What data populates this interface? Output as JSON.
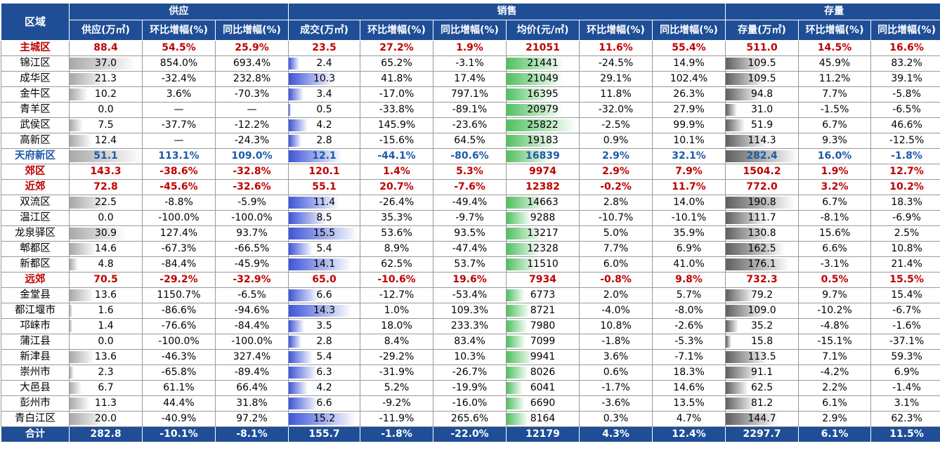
{
  "header": {
    "region": "区域",
    "groups": {
      "supply": "供应",
      "sales": "销售",
      "stock": "存量"
    },
    "columns": [
      "供应(万㎡)",
      "环比增幅(%)",
      "同比增幅(%)",
      "成交(万㎡)",
      "环比增幅(%)",
      "同比增幅(%)",
      "均价(元/㎡)",
      "环比增幅(%)",
      "同比增幅(%)",
      "存量(万㎡)",
      "环比增幅(%)",
      "同比增幅(%)"
    ]
  },
  "colors": {
    "header_bg": "#1f4e96",
    "red_text": "#c00000",
    "blue_text": "#1c5aa8"
  },
  "rows": [
    {
      "style": "red",
      "cells": [
        "主城区",
        "88.4",
        "54.5%",
        "25.9%",
        "23.5",
        "27.2%",
        "1.9%",
        "21051",
        "11.6%",
        "55.4%",
        "511.0",
        "14.5%",
        "16.6%"
      ]
    },
    {
      "style": "normal",
      "cells": [
        "锦江区",
        "37.0",
        "854.0%",
        "693.4%",
        "2.4",
        "65.2%",
        "-3.1%",
        "21441",
        "-24.5%",
        "14.9%",
        "109.5",
        "45.9%",
        "83.2%"
      ]
    },
    {
      "style": "normal",
      "cells": [
        "成华区",
        "21.3",
        "-32.4%",
        "232.8%",
        "10.3",
        "41.8%",
        "17.4%",
        "21049",
        "29.1%",
        "102.4%",
        "109.5",
        "11.2%",
        "39.1%"
      ]
    },
    {
      "style": "normal",
      "cells": [
        "金牛区",
        "10.2",
        "3.6%",
        "-70.3%",
        "3.4",
        "-17.0%",
        "797.1%",
        "16395",
        "11.8%",
        "26.3%",
        "94.8",
        "7.7%",
        "-5.8%"
      ]
    },
    {
      "style": "normal",
      "cells": [
        "青羊区",
        "0.0",
        "—",
        "—",
        "0.5",
        "-33.8%",
        "-89.1%",
        "20979",
        "-32.0%",
        "27.9%",
        "31.0",
        "-1.5%",
        "-6.5%"
      ]
    },
    {
      "style": "normal",
      "cells": [
        "武侯区",
        "7.5",
        "-37.7%",
        "-12.2%",
        "4.2",
        "145.9%",
        "-23.6%",
        "25822",
        "-2.5%",
        "99.9%",
        "51.9",
        "6.7%",
        "46.6%"
      ]
    },
    {
      "style": "normal",
      "cells": [
        "高新区",
        "12.4",
        "—",
        "-24.3%",
        "2.8",
        "-15.6%",
        "64.5%",
        "19183",
        "0.9%",
        "10.1%",
        "114.3",
        "9.3%",
        "-12.5%"
      ]
    },
    {
      "style": "blue",
      "cells": [
        "天府新区",
        "51.1",
        "113.1%",
        "109.0%",
        "12.1",
        "-44.1%",
        "-80.6%",
        "16839",
        "2.9%",
        "32.1%",
        "282.4",
        "16.0%",
        "-1.8%"
      ]
    },
    {
      "style": "red",
      "cells": [
        "郊区",
        "143.3",
        "-38.6%",
        "-32.8%",
        "120.1",
        "1.4%",
        "5.3%",
        "9974",
        "2.9%",
        "7.9%",
        "1504.2",
        "1.9%",
        "12.7%"
      ]
    },
    {
      "style": "red",
      "cells": [
        "近郊",
        "72.8",
        "-45.6%",
        "-32.6%",
        "55.1",
        "20.7%",
        "-7.6%",
        "12382",
        "-0.2%",
        "11.7%",
        "772.0",
        "3.2%",
        "10.2%"
      ]
    },
    {
      "style": "normal",
      "cells": [
        "双流区",
        "22.5",
        "-8.8%",
        "-5.9%",
        "11.4",
        "-26.4%",
        "-49.4%",
        "14663",
        "2.8%",
        "14.0%",
        "190.8",
        "6.7%",
        "18.3%"
      ]
    },
    {
      "style": "normal",
      "cells": [
        "温江区",
        "0.0",
        "-100.0%",
        "-100.0%",
        "8.5",
        "35.3%",
        "-9.7%",
        "9288",
        "-10.7%",
        "-10.1%",
        "111.7",
        "-8.1%",
        "-6.9%"
      ]
    },
    {
      "style": "normal",
      "cells": [
        "龙泉驿区",
        "30.9",
        "127.4%",
        "93.7%",
        "15.5",
        "53.6%",
        "93.5%",
        "13217",
        "5.0%",
        "35.9%",
        "130.8",
        "15.6%",
        "2.5%"
      ]
    },
    {
      "style": "normal",
      "cells": [
        "郫都区",
        "14.6",
        "-67.3%",
        "-66.5%",
        "5.4",
        "8.9%",
        "-47.4%",
        "12328",
        "7.7%",
        "6.9%",
        "162.5",
        "6.6%",
        "10.8%"
      ]
    },
    {
      "style": "normal",
      "cells": [
        "新都区",
        "4.8",
        "-84.4%",
        "-45.9%",
        "14.1",
        "62.5%",
        "53.7%",
        "11510",
        "6.0%",
        "41.0%",
        "176.1",
        "-3.1%",
        "21.4%"
      ]
    },
    {
      "style": "red",
      "cells": [
        "远郊",
        "70.5",
        "-29.2%",
        "-32.9%",
        "65.0",
        "-10.6%",
        "19.6%",
        "7934",
        "-0.8%",
        "9.8%",
        "732.3",
        "0.5%",
        "15.5%"
      ]
    },
    {
      "style": "normal",
      "cells": [
        "金堂县",
        "13.6",
        "1150.7%",
        "-6.5%",
        "6.6",
        "-12.7%",
        "-53.4%",
        "6773",
        "2.0%",
        "5.7%",
        "79.2",
        "9.7%",
        "15.4%"
      ]
    },
    {
      "style": "normal",
      "cells": [
        "都江堰市",
        "1.6",
        "-86.6%",
        "-94.6%",
        "14.3",
        "1.0%",
        "109.3%",
        "8721",
        "-4.0%",
        "-8.0%",
        "109.0",
        "-10.2%",
        "-6.7%"
      ]
    },
    {
      "style": "normal",
      "cells": [
        "邛崃市",
        "1.4",
        "-76.6%",
        "-84.4%",
        "3.5",
        "18.0%",
        "233.3%",
        "7980",
        "10.8%",
        "-2.6%",
        "35.2",
        "-4.8%",
        "-1.6%"
      ]
    },
    {
      "style": "normal",
      "cells": [
        "蒲江县",
        "0.0",
        "-100.0%",
        "-100.0%",
        "2.8",
        "8.4%",
        "83.4%",
        "7099",
        "-1.8%",
        "-5.3%",
        "15.8",
        "-15.1%",
        "-37.1%"
      ]
    },
    {
      "style": "normal",
      "cells": [
        "新津县",
        "13.6",
        "-46.3%",
        "327.4%",
        "5.4",
        "-29.2%",
        "10.3%",
        "9941",
        "3.6%",
        "-7.1%",
        "113.5",
        "7.1%",
        "59.3%"
      ]
    },
    {
      "style": "normal",
      "cells": [
        "崇州市",
        "2.3",
        "-65.8%",
        "-89.4%",
        "6.3",
        "-31.9%",
        "-26.7%",
        "8026",
        "0.6%",
        "18.3%",
        "91.1",
        "-4.2%",
        "6.9%"
      ]
    },
    {
      "style": "normal",
      "cells": [
        "大邑县",
        "6.7",
        "61.1%",
        "66.4%",
        "4.2",
        "5.2%",
        "-19.9%",
        "6041",
        "-1.7%",
        "14.6%",
        "62.5",
        "2.2%",
        "-1.4%"
      ]
    },
    {
      "style": "normal",
      "cells": [
        "彭州市",
        "11.3",
        "44.4%",
        "31.8%",
        "6.6",
        "-9.2%",
        "-16.0%",
        "6690",
        "-3.6%",
        "13.5%",
        "81.2",
        "6.1%",
        "3.1%"
      ]
    },
    {
      "style": "normal",
      "cells": [
        "青白江区",
        "20.0",
        "-40.9%",
        "97.2%",
        "15.2",
        "-11.9%",
        "265.6%",
        "8164",
        "0.3%",
        "4.7%",
        "144.7",
        "2.9%",
        "62.3%"
      ]
    }
  ],
  "total": [
    "合计",
    "282.8",
    "-10.1%",
    "-8.1%",
    "155.7",
    "-1.8%",
    "-22.0%",
    "12179",
    "4.3%",
    "12.4%",
    "2297.7",
    "6.1%",
    "11.5%"
  ]
}
